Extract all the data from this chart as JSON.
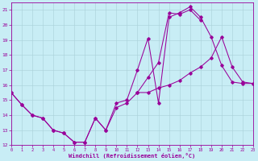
{
  "xlabel": "Windchill (Refroidissement éolien,°C)",
  "xlim": [
    0,
    23
  ],
  "ylim": [
    12,
    21.5
  ],
  "yticks": [
    12,
    13,
    14,
    15,
    16,
    17,
    18,
    19,
    20,
    21
  ],
  "xticks": [
    0,
    1,
    2,
    3,
    4,
    5,
    6,
    7,
    8,
    9,
    10,
    11,
    12,
    13,
    14,
    15,
    16,
    17,
    18,
    19,
    20,
    21,
    22,
    23
  ],
  "bg_color": "#c8edf5",
  "line_color": "#990099",
  "grid_color": "#a8d0d8",
  "x": [
    0,
    1,
    2,
    3,
    4,
    5,
    6,
    7,
    8,
    9,
    10,
    11,
    12,
    13,
    14,
    15,
    16,
    17,
    18,
    19,
    20,
    21,
    22,
    23
  ],
  "line1_y": [
    15.5,
    14.7,
    14.0,
    13.8,
    13.0,
    12.8,
    12.2,
    12.2,
    13.8,
    13.0,
    14.8,
    15.0,
    17.0,
    19.1,
    14.8,
    20.5,
    20.8,
    21.2,
    20.5,
    19.2,
    17.3,
    16.2,
    16.1,
    16.1
  ],
  "line2_y": [
    15.5,
    14.7,
    14.0,
    13.8,
    13.0,
    12.8,
    12.2,
    12.2,
    13.8,
    13.0,
    14.5,
    14.8,
    15.5,
    15.5,
    15.8,
    16.0,
    16.3,
    16.8,
    17.2,
    17.8,
    19.2,
    17.2,
    16.2,
    16.1
  ],
  "line3_y": [
    null,
    null,
    null,
    null,
    null,
    null,
    null,
    null,
    null,
    null,
    null,
    null,
    15.5,
    16.5,
    17.5,
    20.8,
    20.7,
    21.0,
    20.3,
    null,
    null,
    null,
    null,
    null
  ]
}
